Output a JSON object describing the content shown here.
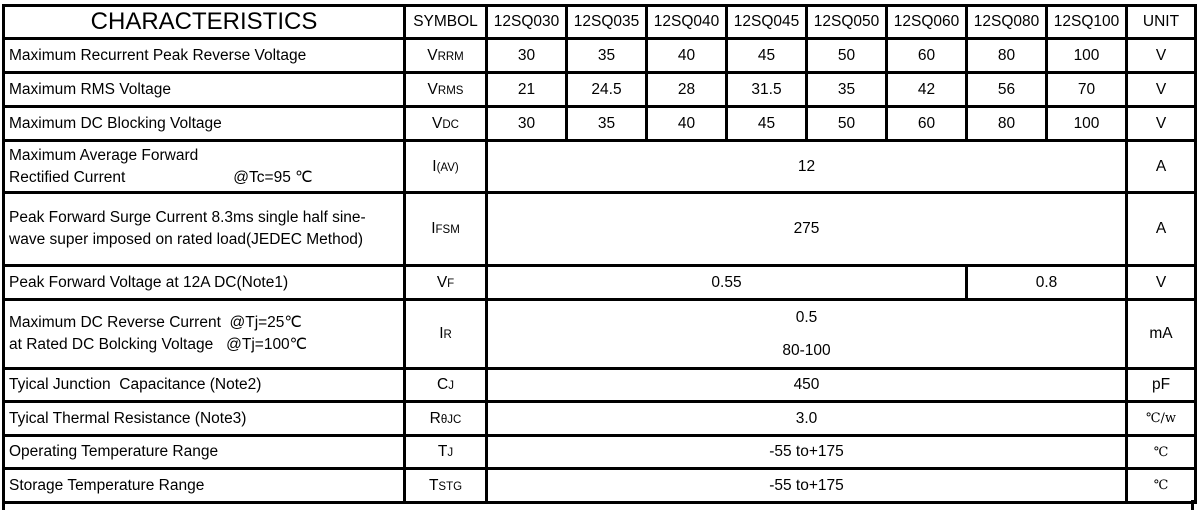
{
  "header": {
    "characteristics": "CHARACTERISTICS",
    "symbol": "SYMBOL",
    "models": [
      "12SQ030",
      "12SQ035",
      "12SQ040",
      "12SQ045",
      "12SQ050",
      "12SQ060",
      "12SQ080",
      "12SQ100"
    ],
    "unit": "UNIT"
  },
  "rows": [
    {
      "desc": "Maximum Recurrent Peak Reverse Voltage",
      "sym": "V",
      "sub": "RRM",
      "values": [
        "30",
        "35",
        "40",
        "45",
        "50",
        "60",
        "80",
        "100"
      ],
      "unit": "V"
    },
    {
      "desc": "Maximum RMS Voltage",
      "sym": "V",
      "sub": "RMS",
      "values": [
        "21",
        "24.5",
        "28",
        "31.5",
        "35",
        "42",
        "56",
        "70"
      ],
      "unit": "V"
    },
    {
      "desc": "Maximum DC Blocking Voltage",
      "sym": "V",
      "sub": "DC",
      "values": [
        "30",
        "35",
        "40",
        "45",
        "50",
        "60",
        "80",
        "100"
      ],
      "unit": "V"
    },
    {
      "desc1": "Maximum Average Forward",
      "desc2": "Rectified Current",
      "cond": "@Tc=95 ℃",
      "sym": "I",
      "sub": "(AV)",
      "value": "12",
      "unit": "A"
    },
    {
      "desc1": "Peak Forward Surge Current 8.3ms single half sine-",
      "desc2": "wave super imposed on rated load(JEDEC Method)",
      "sym": "I",
      "sub": "FSM",
      "value": "275",
      "unit": "A"
    },
    {
      "desc": "Peak Forward Voltage at 12A DC(Note1)",
      "sym": "V",
      "sub": "F",
      "value_a": "0.55",
      "value_b": "0.8",
      "unit": "V"
    },
    {
      "desc1": "Maximum DC Reverse Current  @Tj=25℃",
      "desc2": "at Rated DC Bolcking Voltage   @Tj=100℃",
      "sym": "I",
      "sub": "R",
      "value1": "0.5",
      "value2": "80-100",
      "unit": "mA"
    },
    {
      "desc": "Tyical Junction  Capacitance (Note2)",
      "sym": "C",
      "sub": "J",
      "value": "450",
      "unit": "pF"
    },
    {
      "desc": "Tyical Thermal Resistance (Note3)",
      "sym": "R",
      "sub": "θJC",
      "value": "3.0",
      "unit": "℃/w"
    },
    {
      "desc": "Operating Temperature Range",
      "sym": "T",
      "sub": "J",
      "value": "-55 to+175",
      "unit": "℃"
    },
    {
      "desc": "Storage Temperature Range",
      "sym": "T",
      "sub": "STG",
      "value": "-55 to+175",
      "unit": "℃"
    }
  ]
}
